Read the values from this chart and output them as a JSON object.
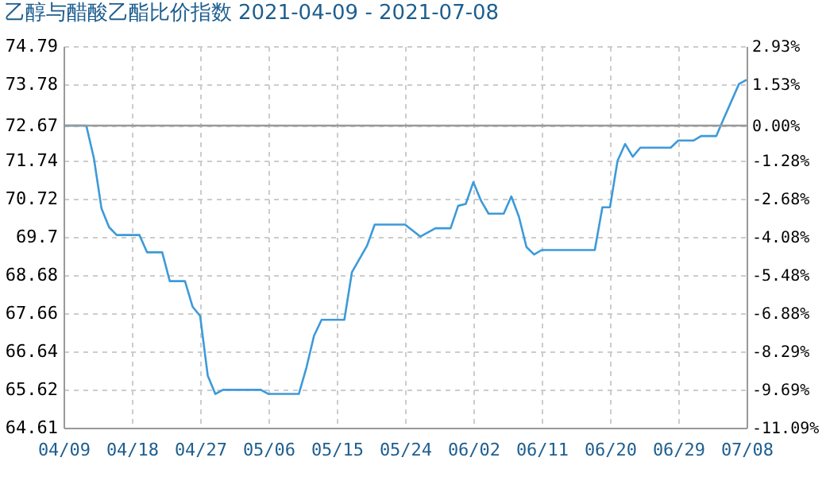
{
  "chart_data": {
    "type": "line",
    "title": "乙醇与醋酸乙酯比价指数 2021-04-09 - 2021-07-08",
    "x": [
      "2021-04-09",
      "2021-04-12",
      "2021-04-13",
      "2021-04-14",
      "2021-04-15",
      "2021-04-16",
      "2021-04-19",
      "2021-04-20",
      "2021-04-22",
      "2021-04-23",
      "2021-04-25",
      "2021-04-26",
      "2021-04-27",
      "2021-04-28",
      "2021-04-29",
      "2021-04-30",
      "2021-05-05",
      "2021-05-06",
      "2021-05-10",
      "2021-05-11",
      "2021-05-12",
      "2021-05-13",
      "2021-05-16",
      "2021-05-17",
      "2021-05-19",
      "2021-05-20",
      "2021-05-24",
      "2021-05-26",
      "2021-05-28",
      "2021-05-30",
      "2021-05-31",
      "2021-06-01",
      "2021-06-02",
      "2021-06-03",
      "2021-06-04",
      "2021-06-06",
      "2021-06-07",
      "2021-06-08",
      "2021-06-09",
      "2021-06-10",
      "2021-06-11",
      "2021-06-18",
      "2021-06-19",
      "2021-06-20",
      "2021-06-21",
      "2021-06-22",
      "2021-06-23",
      "2021-06-24",
      "2021-06-28",
      "2021-06-29",
      "2021-07-01",
      "2021-07-02",
      "2021-07-04",
      "2021-07-05",
      "2021-07-07",
      "2021-07-08"
    ],
    "series": [
      {
        "color": "#3d9ad9",
        "values": [
          72.67,
          72.67,
          71.8,
          70.46,
          69.96,
          69.75,
          69.75,
          69.29,
          69.29,
          68.52,
          68.52,
          67.84,
          67.59,
          66.0,
          65.51,
          65.62,
          65.62,
          65.51,
          65.51,
          66.21,
          67.06,
          67.49,
          67.49,
          68.76,
          69.47,
          70.03,
          70.03,
          69.71,
          69.93,
          69.93,
          70.53,
          70.58,
          71.16,
          70.67,
          70.32,
          70.32,
          70.78,
          70.24,
          69.43,
          69.23,
          69.35,
          69.35,
          70.49,
          70.49,
          71.73,
          72.18,
          71.84,
          72.08,
          72.08,
          72.27,
          72.27,
          72.39,
          72.39,
          72.86,
          73.78,
          73.89
        ]
      }
    ],
    "xlim": [
      "2021-04-09",
      "2021-07-08"
    ],
    "xticks": [
      {
        "value": "2021-04-09",
        "label": "04/09"
      },
      {
        "value": "2021-04-18",
        "label": "04/18"
      },
      {
        "value": "2021-04-27",
        "label": "04/27"
      },
      {
        "value": "2021-05-06",
        "label": "05/06"
      },
      {
        "value": "2021-05-15",
        "label": "05/15"
      },
      {
        "value": "2021-05-24",
        "label": "05/24"
      },
      {
        "value": "2021-06-02",
        "label": "06/02"
      },
      {
        "value": "2021-06-11",
        "label": "06/11"
      },
      {
        "value": "2021-06-20",
        "label": "06/20"
      },
      {
        "value": "2021-06-29",
        "label": "06/29"
      },
      {
        "value": "2021-07-08",
        "label": "07/08"
      }
    ],
    "ylim": [
      64.61,
      74.79
    ],
    "yticks": [
      64.61,
      65.62,
      66.64,
      67.66,
      68.68,
      69.7,
      70.72,
      71.74,
      72.67,
      73.78,
      74.79
    ],
    "y2lim": [
      -11.09,
      2.93
    ],
    "y2ticks": [
      {
        "value": -11.09,
        "label": "-11.09%"
      },
      {
        "value": -9.69,
        "label": "-9.69%"
      },
      {
        "value": -8.29,
        "label": "-8.29%"
      },
      {
        "value": -6.88,
        "label": "-6.88%"
      },
      {
        "value": -5.48,
        "label": "-5.48%"
      },
      {
        "value": -4.08,
        "label": "-4.08%"
      },
      {
        "value": -2.68,
        "label": "-2.68%"
      },
      {
        "value": -1.28,
        "label": "-1.28%"
      },
      {
        "value": 0,
        "label": "0.00%"
      },
      {
        "value": 1.53,
        "label": "1.53%"
      },
      {
        "value": 2.93,
        "label": "2.93%"
      }
    ],
    "ref_lines": [
      {
        "axis": "y",
        "value": 72.67,
        "color": "#999999"
      }
    ],
    "grid": true
  }
}
